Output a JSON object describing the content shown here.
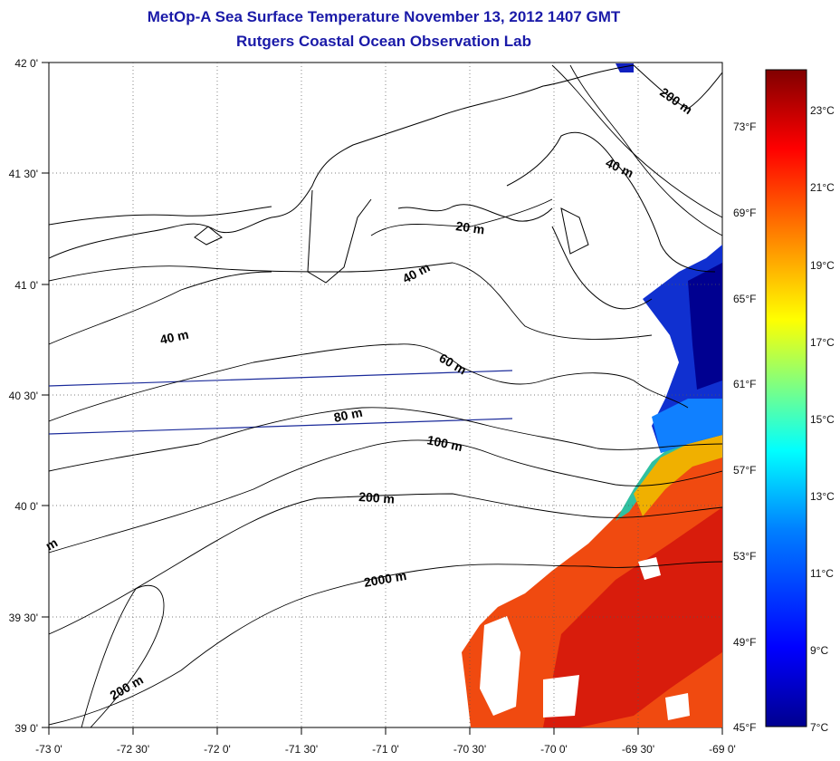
{
  "title": {
    "line1": "MetOp-A Sea Surface Temperature November 13, 2012 1407 GMT",
    "line2": "Rutgers Coastal Ocean Observation Lab"
  },
  "axes": {
    "longitude_ticks": [
      "-73 0'",
      "-72 30'",
      "-72 0'",
      "-71 30'",
      "-71 0'",
      "-70 30'",
      "-70 0'",
      "-69 30'",
      "-69 0'"
    ],
    "latitude_ticks": [
      "42 0'",
      "41 30'",
      "41 0'",
      "40 30'",
      "40 0'",
      "39 30'",
      "39 0'"
    ],
    "lon_range": [
      -73,
      -69
    ],
    "lat_range": [
      39,
      42
    ]
  },
  "contour_labels": [
    "200 m",
    "40 m",
    "20 m",
    "40 m",
    "40 m",
    "60 m",
    "80 m",
    "100 m",
    "200 m",
    "2000 m",
    "200 m",
    "m"
  ],
  "colorbar": {
    "fahrenheit_labels": [
      "73°F",
      "69°F",
      "65°F",
      "61°F",
      "57°F",
      "53°F",
      "49°F",
      "45°F"
    ],
    "celsius_labels": [
      "23°C",
      "21°C",
      "19°C",
      "17°C",
      "15°C",
      "13°C",
      "11°C",
      "9°C",
      "7°C"
    ],
    "range_c": [
      7,
      24
    ],
    "colors": [
      "#00008f",
      "#0000ff",
      "#0080ff",
      "#00ffff",
      "#80ff80",
      "#ffff00",
      "#ff8000",
      "#ff0000",
      "#800000"
    ]
  },
  "colors": {
    "title": "#1a1aa8",
    "land": "#ffffff",
    "coast": "#000000",
    "transect": "#1a2a9a"
  }
}
